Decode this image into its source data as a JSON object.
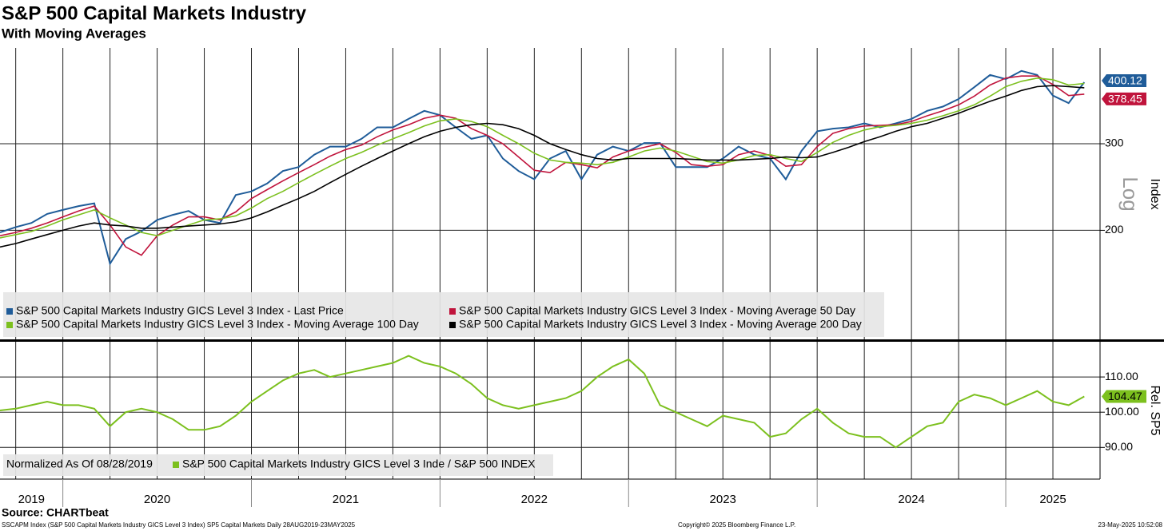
{
  "chart_data": [
    {
      "type": "line",
      "title": "S&P 500 Capital Markets Industry",
      "subtitle": "With Moving Averages",
      "y_label": "Index",
      "scale_label": "Log",
      "log_scale": true,
      "grid": true,
      "xlim": [
        "2019-08",
        "2025-06"
      ],
      "ylim": [
        120,
        470
      ],
      "yticks": [
        200,
        300
      ],
      "x": [
        "2019-08",
        "2019-09",
        "2019-10",
        "2019-11",
        "2019-12",
        "2020-01",
        "2020-02",
        "2020-03",
        "2020-04",
        "2020-05",
        "2020-06",
        "2020-07",
        "2020-08",
        "2020-09",
        "2020-10",
        "2020-11",
        "2020-12",
        "2021-01",
        "2021-02",
        "2021-03",
        "2021-04",
        "2021-05",
        "2021-06",
        "2021-07",
        "2021-08",
        "2021-09",
        "2021-10",
        "2021-11",
        "2021-12",
        "2022-01",
        "2022-02",
        "2022-03",
        "2022-04",
        "2022-05",
        "2022-06",
        "2022-07",
        "2022-08",
        "2022-09",
        "2022-10",
        "2022-11",
        "2022-12",
        "2023-01",
        "2023-02",
        "2023-03",
        "2023-04",
        "2023-05",
        "2023-06",
        "2023-07",
        "2023-08",
        "2023-09",
        "2023-10",
        "2023-11",
        "2023-12",
        "2024-01",
        "2024-02",
        "2024-03",
        "2024-04",
        "2024-05",
        "2024-06",
        "2024-07",
        "2024-08",
        "2024-09",
        "2024-10",
        "2024-11",
        "2024-12",
        "2025-01",
        "2025-02",
        "2025-03",
        "2025-04",
        "2025-05"
      ],
      "series": [
        {
          "name": "S&P 500 Capital Markets Industry GICS Level 3 Index - Last Price",
          "color": "#1f5c99",
          "values": [
            198,
            203,
            207,
            216,
            220,
            224,
            227,
            171,
            192,
            199,
            210,
            215,
            219,
            210,
            207,
            236,
            240,
            249,
            264,
            269,
            285,
            296,
            296,
            307,
            324,
            324,
            337,
            350,
            343,
            324,
            307,
            312,
            280,
            264,
            254,
            280,
            290,
            254,
            285,
            296,
            290,
            301,
            301,
            269,
            269,
            269,
            280,
            296,
            285,
            280,
            254,
            290,
            318,
            322,
            324,
            330,
            324,
            330,
            337,
            350,
            357,
            370,
            391,
            414,
            406,
            422,
            414,
            376,
            363,
            400.12
          ]
        },
        {
          "name": "S&P 500 Capital Markets Industry GICS Level 3 Index - Moving Average 50 Day",
          "color": "#c0143c",
          "values": [
            195,
            198,
            202,
            207,
            213,
            219,
            224,
            205,
            185,
            178,
            195,
            205,
            213,
            213,
            210,
            218,
            232,
            242,
            252,
            262,
            272,
            283,
            292,
            298,
            310,
            320,
            328,
            338,
            343,
            338,
            322,
            312,
            300,
            282,
            265,
            262,
            275,
            272,
            268,
            282,
            290,
            295,
            300,
            288,
            272,
            270,
            272,
            285,
            290,
            284,
            270,
            272,
            296,
            315,
            322,
            326,
            327,
            328,
            333,
            342,
            350,
            360,
            375,
            395,
            408,
            412,
            412,
            396,
            376,
            378.45
          ]
        },
        {
          "name": "S&P 500 Capital Markets Industry GICS Level 3 Index - Moving Average 100 Day",
          "color": "#7cc01e",
          "values": [
            193,
            196,
            199,
            204,
            210,
            215,
            220,
            212,
            205,
            198,
            195,
            200,
            205,
            210,
            211,
            214,
            222,
            232,
            240,
            250,
            260,
            270,
            280,
            288,
            298,
            307,
            316,
            326,
            334,
            337,
            333,
            325,
            312,
            300,
            287,
            278,
            275,
            274,
            272,
            275,
            282,
            290,
            294,
            290,
            283,
            276,
            274,
            278,
            284,
            285,
            280,
            276,
            288,
            302,
            312,
            320,
            325,
            327,
            330,
            335,
            342,
            350,
            360,
            375,
            392,
            402,
            408,
            405,
            395,
            398
          ]
        },
        {
          "name": "S&P 500 Capital Markets Industry GICS Level 3 Index - Moving Average 200 Day",
          "color": "#000000",
          "values": [
            185,
            188,
            192,
            196,
            200,
            204,
            207,
            205,
            204,
            202,
            202,
            203,
            204,
            205,
            206,
            208,
            212,
            218,
            225,
            232,
            240,
            250,
            260,
            270,
            280,
            290,
            300,
            310,
            318,
            324,
            328,
            330,
            328,
            322,
            312,
            300,
            292,
            285,
            280,
            278,
            280,
            280,
            280,
            280,
            279,
            278,
            278,
            278,
            279,
            280,
            282,
            281,
            282,
            288,
            295,
            303,
            310,
            318,
            325,
            330,
            338,
            346,
            356,
            366,
            375,
            385,
            392,
            394,
            392,
            390
          ]
        }
      ]
    },
    {
      "type": "line",
      "y_label": "Rel. SP5",
      "note": "Normalized As Of 08/28/2019",
      "grid": true,
      "xlim": [
        "2019-08",
        "2025-06"
      ],
      "xticks": [
        "2019",
        "2020",
        "2021",
        "2022",
        "2023",
        "2024",
        "2025"
      ],
      "ylim": [
        81,
        120
      ],
      "yticks": [
        {
          "value": 90,
          "label": "90.00"
        },
        {
          "value": 100,
          "label": "100.00"
        },
        {
          "value": 110,
          "label": "110.00"
        }
      ],
      "x": [
        "2019-08",
        "2019-09",
        "2019-10",
        "2019-11",
        "2019-12",
        "2020-01",
        "2020-02",
        "2020-03",
        "2020-04",
        "2020-05",
        "2020-06",
        "2020-07",
        "2020-08",
        "2020-09",
        "2020-10",
        "2020-11",
        "2020-12",
        "2021-01",
        "2021-02",
        "2021-03",
        "2021-04",
        "2021-05",
        "2021-06",
        "2021-07",
        "2021-08",
        "2021-09",
        "2021-10",
        "2021-11",
        "2021-12",
        "2022-01",
        "2022-02",
        "2022-03",
        "2022-04",
        "2022-05",
        "2022-06",
        "2022-07",
        "2022-08",
        "2022-09",
        "2022-10",
        "2022-11",
        "2022-12",
        "2023-01",
        "2023-02",
        "2023-03",
        "2023-04",
        "2023-05",
        "2023-06",
        "2023-07",
        "2023-08",
        "2023-09",
        "2023-10",
        "2023-11",
        "2023-12",
        "2024-01",
        "2024-02",
        "2024-03",
        "2024-04",
        "2024-05",
        "2024-06",
        "2024-07",
        "2024-08",
        "2024-09",
        "2024-10",
        "2024-11",
        "2024-12",
        "2025-01",
        "2025-02",
        "2025-03",
        "2025-04",
        "2025-05"
      ],
      "series": [
        {
          "name": "S&P 500 Capital Markets Industry GICS Level 3 Inde / S&P 500 INDEX",
          "color": "#7cc01e",
          "values": [
            100.5,
            101,
            102,
            103,
            102,
            102,
            101,
            96,
            100,
            101,
            100,
            98,
            95,
            95,
            96,
            99,
            103,
            106,
            109,
            111,
            112,
            110,
            111,
            112,
            113,
            114,
            116,
            114,
            113,
            111,
            108,
            104,
            102,
            101,
            102,
            103,
            104,
            106,
            110,
            113,
            115,
            111,
            102,
            100,
            98,
            96,
            99,
            98,
            97,
            93,
            94,
            98,
            101,
            97,
            94,
            93,
            93,
            90,
            93,
            96,
            97,
            103,
            105,
            104,
            102,
            104,
            106,
            103,
            102,
            104.47
          ]
        }
      ]
    }
  ],
  "source": "Source: CHARTbeat",
  "footer_left": "SSCAPM Index (S&P 500 Capital Markets Industry GICS Level 3 Index) SP5 Capital Markets  Daily 28AUG2019-23MAY2025",
  "footer_center": "Copyright© 2025 Bloomberg Finance L.P.",
  "footer_right": "23-May-2025 10:52:08"
}
